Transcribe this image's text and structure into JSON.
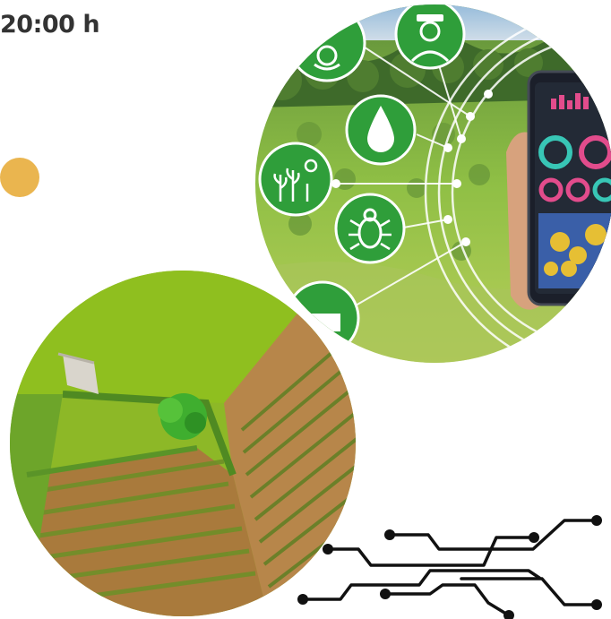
{
  "header": {
    "time_text": "20:00 h"
  },
  "colors": {
    "accent_dot": "#eab54f",
    "text_dark": "#333333",
    "circuit_line": "#111111",
    "icon_badge_green": "#2f9e3a"
  },
  "images": {
    "smart_farm_photo": {
      "icons": [
        "sprinkler-icon",
        "farmer-icon",
        "water-drop-icon",
        "crop-growth-icon",
        "bug-icon",
        "livestock-icon"
      ]
    },
    "aerial_field_photo": {}
  }
}
